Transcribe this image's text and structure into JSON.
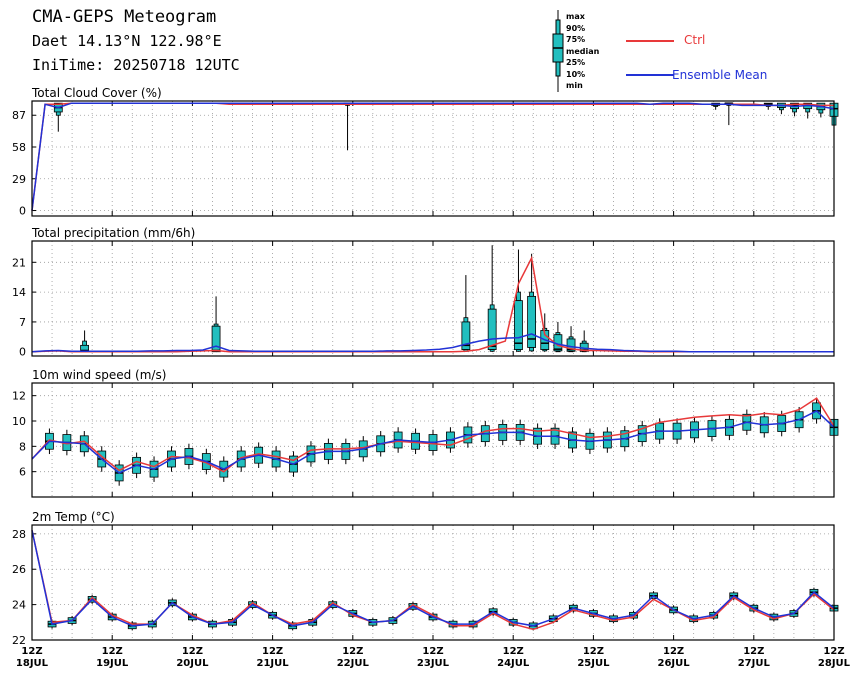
{
  "header": {
    "title": "CMA-GEPS Meteogram",
    "location": "Daet 14.13°N 122.98°E",
    "init_time": "IniTime: 20250718 12UTC"
  },
  "legend": {
    "box_labels": [
      "max",
      "90%",
      "75%",
      "median",
      "25%",
      "10%",
      "min"
    ],
    "ctrl_label": "Ctrl",
    "mean_label": "Ensemble Mean",
    "colors": {
      "ctrl": "#e8393a",
      "mean": "#2232d6",
      "box": "#22bfbf"
    }
  },
  "chart_data": [
    {
      "type": "line",
      "title": "Total Cloud Cover (%)",
      "ylim": [
        -5,
        100
      ],
      "yticks": [
        0,
        29,
        58,
        87
      ],
      "grid": true,
      "x_ticks": [
        "12Z 18JUL",
        "12Z 19JUL",
        "12Z 20JUL",
        "12Z 21JUL",
        "12Z 22JUL",
        "12Z 23JUL",
        "12Z 24JUL",
        "12Z 25JUL",
        "12Z 26JUL",
        "12Z 27JUL",
        "12Z 28JUL"
      ],
      "series": [
        {
          "name": "Ctrl",
          "values": [
            0,
            97,
            97,
            98,
            98,
            98,
            98,
            98,
            98,
            98,
            98,
            98,
            98,
            98,
            98,
            97,
            97,
            97,
            97,
            97,
            97,
            97,
            97,
            97,
            97,
            97,
            97,
            97,
            97,
            97,
            97,
            97,
            97,
            97,
            97,
            97,
            97,
            97,
            97,
            97,
            97,
            97,
            97,
            97,
            97,
            97,
            97,
            97,
            97,
            97,
            97,
            97,
            97,
            97,
            97,
            97,
            96,
            96,
            97,
            97,
            96,
            96
          ]
        },
        {
          "name": "Ensemble Mean",
          "values": [
            0,
            97,
            94,
            98,
            98,
            98,
            98,
            98,
            98,
            98,
            98,
            98,
            98,
            98,
            98,
            98,
            98,
            98,
            98,
            98,
            98,
            98,
            98,
            98,
            98,
            98,
            98,
            98,
            98,
            98,
            98,
            98,
            98,
            98,
            98,
            98,
            98,
            98,
            98,
            98,
            98,
            98,
            98,
            98,
            98,
            98,
            98,
            97,
            98,
            98,
            98,
            97,
            97,
            97,
            96,
            96,
            96,
            96,
            95,
            96,
            95,
            93
          ]
        }
      ],
      "boxes": [
        {
          "i": 2,
          "min": 72,
          "p10": 87,
          "p25": 90,
          "median": 94,
          "p75": 98,
          "p90": 98,
          "max": 98
        },
        {
          "i": 24,
          "min": 55,
          "p10": 96,
          "p25": 97,
          "median": 98,
          "p75": 98,
          "p90": 98,
          "max": 98
        },
        {
          "i": 52,
          "min": 92,
          "p10": 95,
          "p25": 96,
          "median": 97,
          "p75": 98,
          "p90": 98,
          "max": 98
        },
        {
          "i": 53,
          "min": 78,
          "p10": 96,
          "p25": 97,
          "median": 98,
          "p75": 98,
          "p90": 98,
          "max": 98
        },
        {
          "i": 56,
          "min": 92,
          "p10": 95,
          "p25": 96,
          "median": 97,
          "p75": 98,
          "p90": 98,
          "max": 98
        },
        {
          "i": 57,
          "min": 88,
          "p10": 92,
          "p25": 94,
          "median": 96,
          "p75": 98,
          "p90": 98,
          "max": 98
        },
        {
          "i": 58,
          "min": 86,
          "p10": 90,
          "p25": 93,
          "median": 96,
          "p75": 98,
          "p90": 98,
          "max": 98
        },
        {
          "i": 59,
          "min": 84,
          "p10": 90,
          "p25": 93,
          "median": 96,
          "p75": 98,
          "p90": 98,
          "max": 98
        },
        {
          "i": 60,
          "min": 85,
          "p10": 89,
          "p25": 92,
          "median": 95,
          "p75": 98,
          "p90": 98,
          "max": 98
        },
        {
          "i": 61,
          "min": 68,
          "p10": 78,
          "p25": 86,
          "median": 93,
          "p75": 98,
          "p90": 98,
          "max": 98
        }
      ]
    },
    {
      "type": "line",
      "title": "Total precipitation (mm/6h)",
      "ylim": [
        -1,
        26
      ],
      "yticks": [
        0,
        7,
        14,
        21
      ],
      "grid": true,
      "x_ticks": [
        "12Z 18JUL",
        "12Z 19JUL",
        "12Z 20JUL",
        "12Z 21JUL",
        "12Z 22JUL",
        "12Z 23JUL",
        "12Z 24JUL",
        "12Z 25JUL",
        "12Z 26JUL",
        "12Z 27JUL",
        "12Z 28JUL"
      ],
      "series": [
        {
          "name": "Ctrl",
          "values": [
            0,
            0.1,
            0.2,
            0,
            0,
            0,
            0,
            0,
            0,
            0,
            0,
            0,
            0.1,
            0.2,
            0.3,
            0,
            0,
            0,
            0,
            0,
            0,
            0,
            0,
            0,
            0,
            0,
            0,
            0,
            0,
            0,
            0,
            0,
            0,
            0.1,
            0.5,
            1.5,
            2.5,
            16,
            22,
            4,
            1.5,
            0.7,
            0.3,
            0.3,
            0.2,
            0.1,
            0.1,
            0,
            0,
            0,
            0,
            0,
            0,
            0,
            0,
            0,
            0,
            0,
            0,
            0,
            0,
            0
          ]
        },
        {
          "name": "Ensemble Mean",
          "values": [
            0,
            0.2,
            0.3,
            0.1,
            0.1,
            0.1,
            0.1,
            0.1,
            0.1,
            0.2,
            0.2,
            0.3,
            0.3,
            0.4,
            1.3,
            0.3,
            0.2,
            0.1,
            0.1,
            0.1,
            0.1,
            0.1,
            0.1,
            0.1,
            0.1,
            0.1,
            0.1,
            0.2,
            0.2,
            0.3,
            0.4,
            0.6,
            1.0,
            1.8,
            2.5,
            3.0,
            3.2,
            3.3,
            4.2,
            2.8,
            1.8,
            1.2,
            0.8,
            0.6,
            0.5,
            0.3,
            0.2,
            0.1,
            0.1,
            0.1,
            0,
            0,
            0,
            0,
            0,
            0,
            0,
            0,
            0,
            0,
            0,
            0
          ]
        }
      ],
      "boxes": [
        {
          "i": 4,
          "min": 0,
          "p10": 0,
          "p25": 0.1,
          "median": 0.3,
          "p75": 1.5,
          "p90": 2.5,
          "max": 5
        },
        {
          "i": 14,
          "min": 0,
          "p10": 0,
          "p25": 0,
          "median": 0.3,
          "p75": 6,
          "p90": 6.5,
          "max": 13
        },
        {
          "i": 33,
          "min": 0,
          "p10": 0.1,
          "p25": 0.5,
          "median": 1.5,
          "p75": 7,
          "p90": 8,
          "max": 18
        },
        {
          "i": 35,
          "min": 0,
          "p10": 0.1,
          "p25": 0.5,
          "median": 1.3,
          "p75": 10,
          "p90": 11,
          "max": 25
        },
        {
          "i": 37,
          "min": 0,
          "p10": 0.1,
          "p25": 0.5,
          "median": 2,
          "p75": 12,
          "p90": 14,
          "max": 24
        },
        {
          "i": 38,
          "min": 0,
          "p10": 0.2,
          "p25": 1,
          "median": 3,
          "p75": 13,
          "p90": 14,
          "max": 23
        },
        {
          "i": 39,
          "min": 0,
          "p10": 0.2,
          "p25": 0.5,
          "median": 2,
          "p75": 5,
          "p90": 5.5,
          "max": 9
        },
        {
          "i": 40,
          "min": 0,
          "p10": 0,
          "p25": 0.2,
          "median": 0.6,
          "p75": 4,
          "p90": 4.5,
          "max": 7
        },
        {
          "i": 41,
          "min": 0,
          "p10": 0,
          "p25": 0.1,
          "median": 0.5,
          "p75": 3,
          "p90": 3.5,
          "max": 6
        },
        {
          "i": 42,
          "min": 0,
          "p10": 0,
          "p25": 0.1,
          "median": 0.4,
          "p75": 2,
          "p90": 2.5,
          "max": 5
        }
      ]
    },
    {
      "type": "line",
      "title": "10m wind speed (m/s)",
      "ylim": [
        4,
        13
      ],
      "yticks": [
        6,
        8,
        10,
        12
      ],
      "grid": true,
      "x_ticks": [
        "12Z 18JUL",
        "12Z 19JUL",
        "12Z 20JUL",
        "12Z 21JUL",
        "12Z 22JUL",
        "12Z 23JUL",
        "12Z 24JUL",
        "12Z 25JUL",
        "12Z 26JUL",
        "12Z 27JUL",
        "12Z 28JUL"
      ],
      "series": [
        {
          "name": "Ctrl",
          "values": [
            7,
            8.5,
            8.2,
            8.4,
            7.2,
            6.1,
            6.8,
            6.4,
            7.2,
            7.1,
            6.7,
            6.0,
            7.1,
            7.4,
            7.2,
            6.9,
            7.7,
            7.8,
            7.8,
            7.9,
            8.2,
            8.4,
            8.3,
            8.2,
            8.1,
            8.6,
            9.2,
            9.4,
            9.4,
            9.2,
            9.3,
            9.0,
            8.7,
            8.8,
            9.0,
            9.4,
            9.9,
            10.1,
            10.3,
            10.4,
            10.5,
            10.4,
            10.6,
            10.5,
            10.9,
            11.8,
            9.6
          ]
        },
        {
          "name": "Ensemble Mean",
          "values": [
            7,
            8.4,
            8.3,
            8.2,
            7.0,
            5.9,
            6.5,
            6.2,
            7.0,
            7.2,
            6.8,
            6.2,
            7.0,
            7.3,
            7.0,
            6.6,
            7.4,
            7.6,
            7.6,
            7.8,
            8.2,
            8.5,
            8.4,
            8.3,
            8.5,
            8.9,
            9.0,
            9.1,
            9.1,
            8.8,
            8.8,
            8.5,
            8.4,
            8.5,
            8.6,
            9.0,
            9.2,
            9.2,
            9.3,
            9.4,
            9.5,
            9.9,
            9.7,
            9.8,
            10.1,
            10.8,
            9.5
          ]
        }
      ]
    },
    {
      "type": "line",
      "title": "2m Temp (°C)",
      "ylim": [
        22,
        28.5
      ],
      "yticks": [
        22,
        24,
        26,
        28
      ],
      "grid": true,
      "x_ticks": [
        "12Z 18JUL",
        "12Z 19JUL",
        "12Z 20JUL",
        "12Z 21JUL",
        "12Z 22JUL",
        "12Z 23JUL",
        "12Z 24JUL",
        "12Z 25JUL",
        "12Z 26JUL",
        "12Z 27JUL",
        "12Z 28JUL"
      ],
      "series": [
        {
          "name": "Ctrl",
          "values": [
            28.2,
            23.0,
            23.1,
            24.4,
            23.4,
            22.9,
            22.9,
            24.1,
            23.4,
            22.9,
            23.1,
            24.1,
            23.4,
            22.9,
            23.1,
            24.1,
            23.4,
            23.0,
            23.1,
            24.0,
            23.4,
            22.8,
            22.8,
            23.5,
            22.9,
            22.6,
            23.0,
            23.7,
            23.4,
            23.1,
            23.3,
            24.3,
            23.7,
            23.1,
            23.3,
            24.4,
            23.7,
            23.2,
            23.5,
            24.6,
            23.7
          ]
        },
        {
          "name": "Ensemble Mean",
          "values": [
            28.2,
            22.9,
            23.1,
            24.3,
            23.3,
            22.8,
            22.9,
            24.1,
            23.3,
            22.9,
            23.0,
            24.0,
            23.4,
            22.8,
            23.0,
            24.0,
            23.5,
            23.0,
            23.1,
            23.9,
            23.3,
            22.9,
            22.9,
            23.6,
            23.0,
            22.8,
            23.2,
            23.8,
            23.5,
            23.2,
            23.4,
            24.5,
            23.7,
            23.2,
            23.4,
            24.5,
            23.8,
            23.3,
            23.5,
            24.7,
            23.8
          ]
        }
      ]
    }
  ]
}
